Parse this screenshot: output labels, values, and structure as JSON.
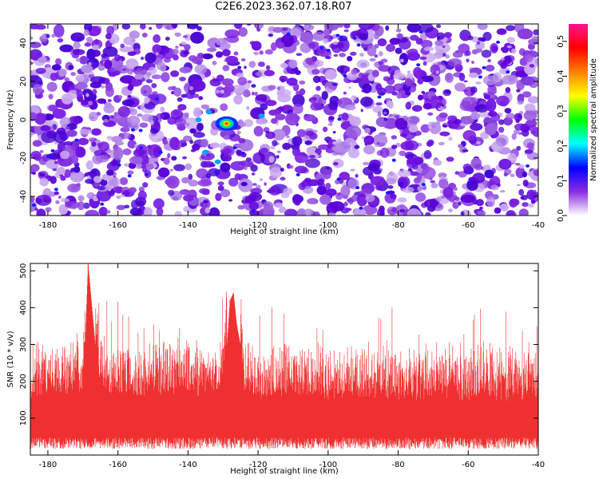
{
  "page": {
    "title": "C2E6.2023.362.07.18.R07"
  },
  "chart_data": [
    {
      "type": "heatmap",
      "title": "C2E6.2023.362.07.18.R07",
      "xlabel": "Height of straight line (km)",
      "ylabel": "Frequency (Hz)",
      "xlim": [
        -185,
        -40
      ],
      "ylim": [
        -50,
        50
      ],
      "x_ticks": [
        -180,
        -160,
        -140,
        -120,
        -100,
        -80,
        -60,
        -40
      ],
      "y_ticks": [
        -40,
        -20,
        0,
        20,
        40
      ],
      "colorbar": {
        "label": "Normalized spectral amplitude",
        "range": [
          0,
          0.55
        ],
        "ticks": [
          0.0,
          0.1,
          0.2,
          0.3,
          0.4,
          0.5
        ],
        "colors": [
          "#ffffff",
          "#8a2be2",
          "#0000ff",
          "#00ffff",
          "#00ff00",
          "#ffff00",
          "#ff8000",
          "#ff0000",
          "#ff1493"
        ]
      },
      "peak": {
        "x": -129,
        "y": -2,
        "value": 0.42
      },
      "grid": false
    },
    {
      "type": "line",
      "xlabel": "Height of straight line (km)",
      "ylabel": "SNR (10 * v/v)",
      "xlim": [
        -185,
        -40
      ],
      "ylim": [
        0,
        520
      ],
      "x_ticks": [
        -180,
        -160,
        -140,
        -120,
        -100,
        -80,
        -60,
        -40
      ],
      "y_ticks": [
        100,
        200,
        300,
        400,
        500
      ],
      "color": "#f03030",
      "series": [
        {
          "x": [
            -185,
            -180,
            -175,
            -170,
            -168.5,
            -165,
            -160,
            -155,
            -150,
            -145,
            -140,
            -135,
            -130,
            -128,
            -127,
            -126,
            -125,
            -124,
            -122,
            -120,
            -115,
            -110,
            -105,
            -100,
            -95,
            -90,
            -85,
            -80,
            -75,
            -70,
            -65,
            -60,
            -55,
            -50,
            -45,
            -40
          ],
          "y": [
            130,
            135,
            140,
            150,
            520,
            145,
            140,
            135,
            135,
            140,
            135,
            130,
            150,
            420,
            440,
            350,
            300,
            140,
            130,
            130,
            130,
            135,
            130,
            125,
            130,
            125,
            130,
            125,
            120,
            130,
            125,
            120,
            125,
            120,
            125,
            125
          ]
        }
      ],
      "envelope": {
        "lower_typical": 40,
        "upper_typical": 260
      },
      "grid": false
    }
  ]
}
